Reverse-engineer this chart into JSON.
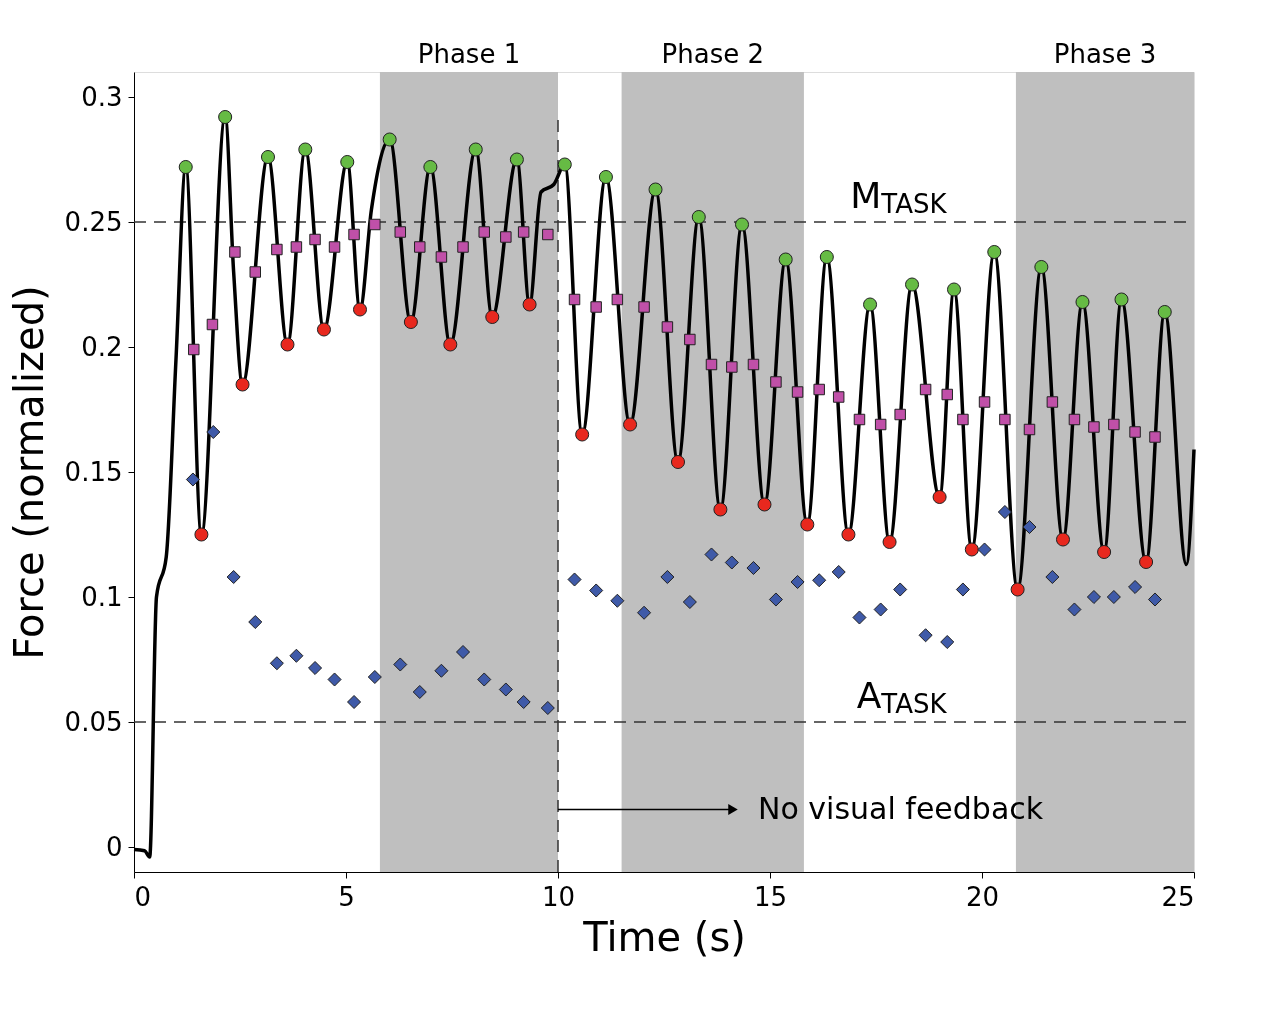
{
  "chart_data": {
    "type": "line",
    "xlabel": "Time (s)",
    "ylabel": "Force (normalized)",
    "xlim": [
      0,
      25
    ],
    "ylim": [
      -0.01,
      0.31
    ],
    "xticks": [
      0,
      5,
      10,
      15,
      20,
      25
    ],
    "yticks": [
      0,
      0.05,
      0.1,
      0.15,
      0.2,
      0.25,
      0.3
    ],
    "grid": false,
    "series": [
      {
        "color": "#000000",
        "marker": "none",
        "line_style": "solid",
        "x": [
          0,
          0.25,
          0.37,
          0.53,
          0.76,
          0.99,
          1.22,
          1.59,
          2.15,
          2.35,
          2.56,
          3.16,
          3.62,
          4.04,
          4.48,
          5.03,
          5.33,
          5.6,
          6.03,
          6.53,
          6.99,
          7.46,
          8.06,
          8.45,
          9.03,
          9.33,
          9.6,
          9.9,
          10.16,
          10.57,
          11.13,
          11.7,
          12.3,
          12.83,
          13.32,
          13.83,
          14.34,
          14.87,
          15.37,
          15.88,
          16.34,
          16.85,
          17.36,
          17.82,
          18.35,
          19.0,
          19.34,
          19.76,
          20.29,
          20.84,
          21.4,
          21.91,
          22.37,
          22.88,
          23.29,
          23.87,
          24.31,
          24.82,
          25
        ],
        "values": [
          -0.001,
          -0.0015,
          -0.004,
          0.1,
          0.116,
          0.195,
          0.272,
          0.125,
          0.292,
          0.23,
          0.185,
          0.276,
          0.201,
          0.279,
          0.207,
          0.274,
          0.215,
          0.255,
          0.283,
          0.21,
          0.272,
          0.201,
          0.279,
          0.212,
          0.275,
          0.217,
          0.262,
          0.265,
          0.273,
          0.165,
          0.268,
          0.169,
          0.263,
          0.154,
          0.252,
          0.135,
          0.249,
          0.137,
          0.235,
          0.129,
          0.236,
          0.125,
          0.217,
          0.122,
          0.225,
          0.14,
          0.223,
          0.119,
          0.238,
          0.103,
          0.232,
          0.123,
          0.218,
          0.118,
          0.219,
          0.114,
          0.214,
          0.113,
          0.159
        ]
      },
      {
        "type": "scatter",
        "color": "#66bb44",
        "marker": "circle",
        "x": [
          1.22,
          2.15,
          3.16,
          4.04,
          5.03,
          6.03,
          6.99,
          8.06,
          9.03,
          10.16,
          11.13,
          12.3,
          13.32,
          14.34,
          15.37,
          16.34,
          17.36,
          18.35,
          19.34,
          20.29,
          21.4,
          22.37,
          23.29,
          24.31
        ],
        "values": [
          0.272,
          0.292,
          0.276,
          0.279,
          0.274,
          0.283,
          0.272,
          0.279,
          0.275,
          0.273,
          0.268,
          0.263,
          0.252,
          0.249,
          0.235,
          0.236,
          0.217,
          0.225,
          0.223,
          0.238,
          0.232,
          0.218,
          0.219,
          0.214
        ]
      },
      {
        "type": "scatter",
        "color": "#e8281e",
        "marker": "circle",
        "x": [
          1.59,
          2.56,
          3.62,
          4.48,
          5.33,
          6.53,
          7.46,
          8.45,
          9.33,
          10.57,
          11.7,
          12.83,
          13.83,
          14.87,
          15.88,
          16.85,
          17.82,
          19.0,
          19.76,
          20.84,
          21.91,
          22.88,
          23.87
        ],
        "values": [
          0.125,
          0.185,
          0.201,
          0.207,
          0.215,
          0.21,
          0.201,
          0.212,
          0.217,
          0.165,
          0.169,
          0.154,
          0.135,
          0.137,
          0.129,
          0.125,
          0.122,
          0.14,
          0.119,
          0.103,
          0.123,
          0.118,
          0.114
        ]
      },
      {
        "type": "scatter",
        "color": "#c050a8",
        "marker": "square",
        "x": [
          1.41,
          1.85,
          2.38,
          2.86,
          3.37,
          3.83,
          4.27,
          4.73,
          5.19,
          5.68,
          6.28,
          6.74,
          7.25,
          7.76,
          8.26,
          8.77,
          9.19,
          9.76,
          10.39,
          10.9,
          11.4,
          12.03,
          12.58,
          13.11,
          13.62,
          14.1,
          14.61,
          15.14,
          15.65,
          16.16,
          16.62,
          17.11,
          17.61,
          18.07,
          18.67,
          19.18,
          19.55,
          20.06,
          20.54,
          21.12,
          21.66,
          22.18,
          22.64,
          23.11,
          23.61,
          24.08
        ],
        "values": [
          0.199,
          0.209,
          0.238,
          0.23,
          0.239,
          0.24,
          0.243,
          0.24,
          0.245,
          0.249,
          0.246,
          0.24,
          0.236,
          0.24,
          0.246,
          0.244,
          0.246,
          0.245,
          0.219,
          0.216,
          0.219,
          0.216,
          0.208,
          0.203,
          0.193,
          0.192,
          0.193,
          0.186,
          0.182,
          0.183,
          0.18,
          0.171,
          0.169,
          0.173,
          0.183,
          0.181,
          0.171,
          0.178,
          0.171,
          0.167,
          0.178,
          0.171,
          0.168,
          0.169,
          0.166,
          0.164
        ]
      },
      {
        "type": "scatter",
        "color": "#3f5aa8",
        "marker": "diamond",
        "x": [
          1.39,
          1.87,
          2.35,
          2.86,
          3.37,
          3.83,
          4.27,
          4.73,
          5.19,
          5.68,
          6.28,
          6.74,
          7.25,
          7.76,
          8.26,
          8.77,
          9.19,
          9.76,
          10.39,
          10.9,
          11.4,
          12.03,
          12.58,
          13.11,
          13.62,
          14.1,
          14.61,
          15.14,
          15.65,
          16.16,
          16.62,
          17.11,
          17.61,
          18.07,
          18.67,
          19.18,
          19.55,
          20.06,
          20.54,
          21.12,
          21.66,
          22.18,
          22.64,
          23.11,
          23.61,
          24.08
        ],
        "values": [
          0.147,
          0.166,
          0.108,
          0.09,
          0.0735,
          0.0765,
          0.0716,
          0.067,
          0.058,
          0.068,
          0.073,
          0.062,
          0.0705,
          0.078,
          0.067,
          0.063,
          0.058,
          0.0556,
          0.107,
          0.1026,
          0.0985,
          0.0937,
          0.108,
          0.098,
          0.117,
          0.1138,
          0.1116,
          0.099,
          0.106,
          0.1067,
          0.11,
          0.0918,
          0.095,
          0.103,
          0.0847,
          0.082,
          0.103,
          0.119,
          0.134,
          0.128,
          0.108,
          0.095,
          0.1,
          0.1,
          0.104,
          0.099
        ]
      }
    ],
    "bands": [
      {
        "axis": "x",
        "from": 5.8,
        "to": 10,
        "label": "Phase 1",
        "color": "#bfbfbf"
      },
      {
        "axis": "x",
        "from": 11.5,
        "to": 15.8,
        "label": "Phase 2",
        "color": "#bfbfbf"
      },
      {
        "axis": "x",
        "from": 20.8,
        "to": 25,
        "label": "Phase 3",
        "color": "#bfbfbf"
      }
    ],
    "ref_lines": [
      {
        "axis": "y",
        "value": 0.25,
        "label": "M$_{TASK}$",
        "color": "#333333",
        "line_style": "dashed"
      },
      {
        "axis": "y",
        "value": 0.05,
        "label": "A$_{TASK}$",
        "color": "#333333",
        "line_style": "dashed"
      },
      {
        "axis": "x",
        "value": 10,
        "color": "#333333",
        "line_style": "dashed"
      }
    ],
    "annotations": [
      {
        "text": "No visual feedback",
        "x": 10,
        "y": 0.015
      }
    ]
  }
}
